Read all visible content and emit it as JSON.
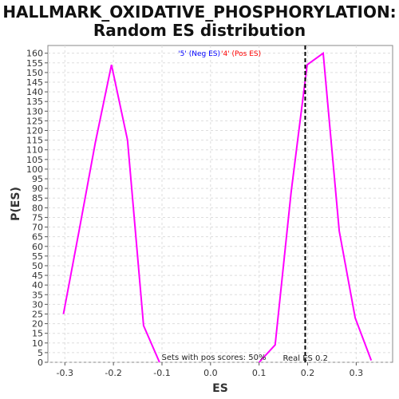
{
  "title_line1": "HALLMARK_OXIDATIVE_PHOSPHORYLATION:",
  "title_line2": "Random ES distribution",
  "colors": {
    "series": "#ff00ff",
    "neg_legend": "#0000ff",
    "pos_legend": "#ff0000",
    "plot_bg": "#ffffff",
    "grid": "#dddddd",
    "real_es_line": "#000000"
  },
  "chart_data": {
    "type": "line",
    "xlabel": "ES",
    "ylabel": "P(ES)",
    "xlim": [
      -0.335,
      0.375
    ],
    "ylim": [
      0,
      164
    ],
    "xticks": [
      -0.3,
      -0.2,
      -0.1,
      0.0,
      0.1,
      0.2,
      0.3
    ],
    "xtick_labels": [
      "-0.3",
      "-0.2",
      "-0.1",
      "0.0",
      "0.1",
      "0.2",
      "0.3"
    ],
    "yticks": [
      0,
      5,
      10,
      15,
      20,
      25,
      30,
      35,
      40,
      45,
      50,
      55,
      60,
      65,
      70,
      75,
      80,
      85,
      90,
      95,
      100,
      105,
      110,
      115,
      120,
      125,
      130,
      135,
      140,
      145,
      150,
      155,
      160
    ],
    "grid": true,
    "legend": {
      "neg_label": "'5' (Neg ES)",
      "pos_label": "'4' (Pos ES)",
      "position": "top-center"
    },
    "series": [
      {
        "x": [
          -0.303,
          -0.27,
          -0.237,
          -0.204,
          -0.171,
          -0.138,
          -0.105
        ],
        "y": [
          25,
          69,
          114,
          154,
          115,
          19,
          0
        ]
      },
      {
        "x": [
          0.1,
          0.133,
          0.166,
          0.199,
          0.232,
          0.265,
          0.298,
          0.331
        ],
        "y": [
          0,
          9,
          88,
          154,
          160,
          68,
          23,
          1
        ]
      }
    ],
    "real_es": {
      "x": 0.195,
      "label": "Real ES 0.2"
    },
    "annotation": "Sets with pos scores: 50%"
  }
}
